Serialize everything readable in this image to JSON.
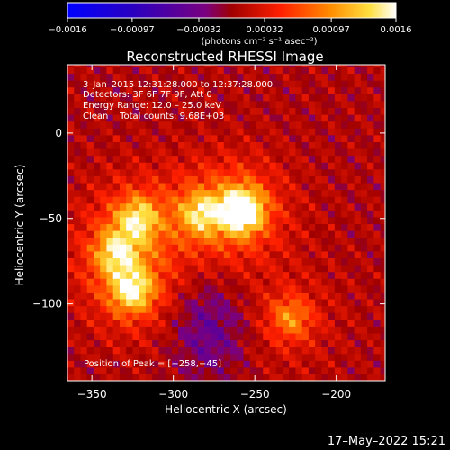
{
  "chart_data": {
    "type": "heatmap",
    "title": "Reconstructed RHESSI Image",
    "xlabel": "Heliocentric X (arcsec)",
    "ylabel": "Heliocentric Y (arcsec)",
    "xlim": [
      -365,
      -170
    ],
    "ylim": [
      -145,
      40
    ],
    "x_ticks": [
      -350,
      -300,
      -250,
      -200
    ],
    "y_ticks": [
      0,
      -50,
      -100
    ],
    "x_tick_labels": [
      "−350",
      "−300",
      "−250",
      "−200"
    ],
    "y_tick_labels": [
      "0",
      "−50",
      "−100"
    ],
    "colorbar": {
      "range": [
        -0.0016,
        0.0016
      ],
      "tick_values": [
        -0.0016,
        -0.00097,
        -0.00032,
        0.00032,
        0.00097,
        0.0016
      ],
      "tick_labels": [
        "−0.0016",
        "−0.00097",
        "−0.00032",
        "0.00032",
        "0.00097",
        "0.0016"
      ],
      "unit_label": "(photons cm⁻² s⁻¹ asec⁻²)"
    },
    "annotations": {
      "time_range": "3–Jan–2015 12:31:28.000 to 12:37:28.000",
      "detectors": "Detectors: 3F 6F 7F 9F, Att 0",
      "energy_range": "Energy Range: 12.0 – 25.0 keV",
      "method_counts": "Clean    Total counts: 9.68E+03",
      "peak_position": "Position of Peak = [−258,−45]"
    },
    "peak": {
      "x": -258,
      "y": -45
    },
    "sources": [
      {
        "x": -258,
        "y": -45,
        "relative_intensity": 1.0
      },
      {
        "x": -283,
        "y": -47,
        "relative_intensity": 0.55
      },
      {
        "x": -322,
        "y": -50,
        "relative_intensity": 0.6
      },
      {
        "x": -335,
        "y": -70,
        "relative_intensity": 0.55
      },
      {
        "x": -325,
        "y": -92,
        "relative_intensity": 0.7
      },
      {
        "x": -228,
        "y": -108,
        "relative_intensity": 0.45
      }
    ],
    "negative_region": {
      "x": -278,
      "y": -115,
      "relative_depth": 0.7
    }
  },
  "footer": {
    "date": "17–May–2022 15:21"
  },
  "colors": {
    "background": "#000000",
    "text": "#ffffff"
  }
}
